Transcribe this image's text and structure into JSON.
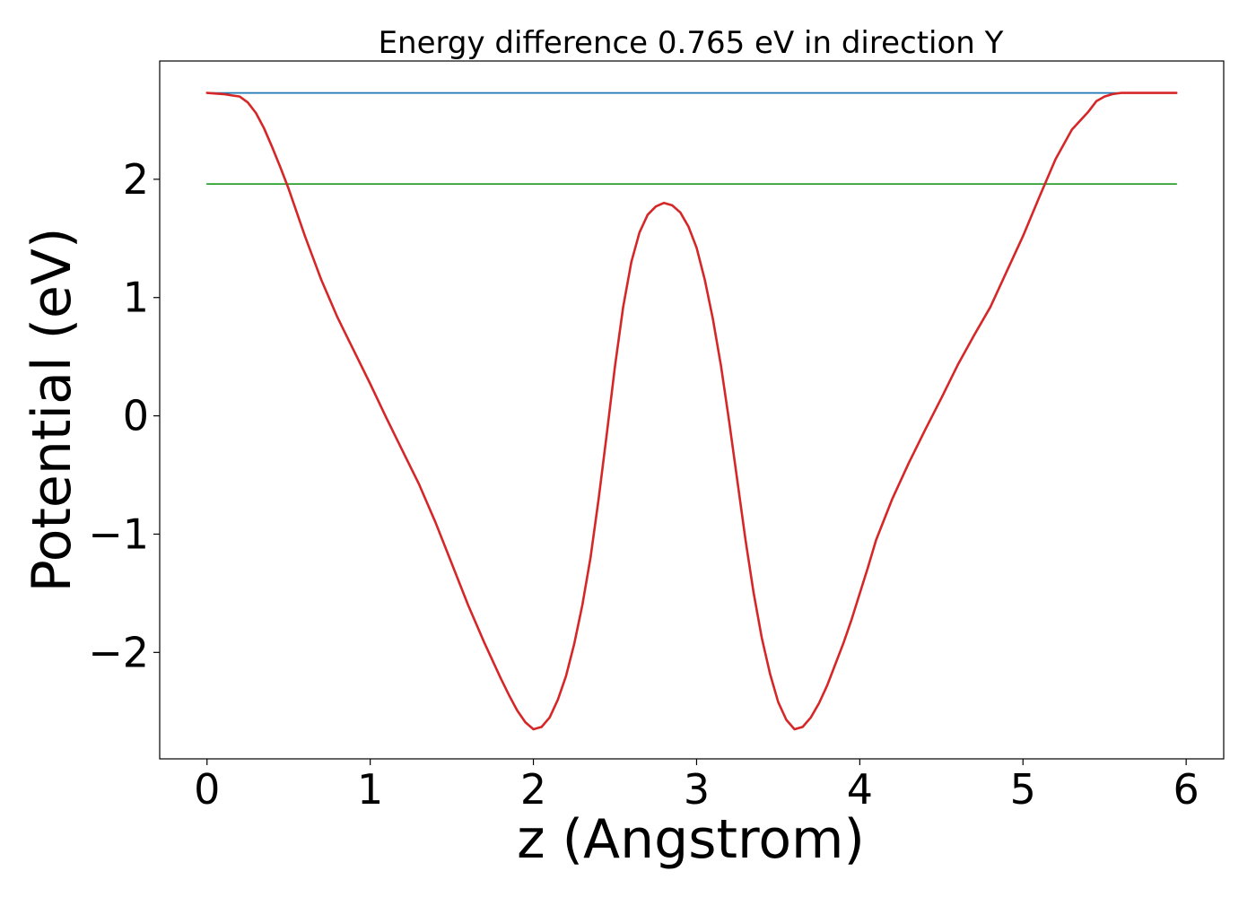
{
  "chart_data": {
    "type": "line",
    "title": "Energy difference 0.765 eV in direction Y",
    "xlabel": "z (Angstrom)",
    "ylabel": "Potential (eV)",
    "xlim": [
      -0.29,
      6.23
    ],
    "ylim": [
      -2.9,
      3.0
    ],
    "grid": false,
    "legend": "none",
    "xticks": [
      {
        "value": 0,
        "label": "0"
      },
      {
        "value": 1,
        "label": "1"
      },
      {
        "value": 2,
        "label": "2"
      },
      {
        "value": 3,
        "label": "3"
      },
      {
        "value": 4,
        "label": "4"
      },
      {
        "value": 5,
        "label": "5"
      },
      {
        "value": 6,
        "label": "6"
      }
    ],
    "yticks": [
      {
        "value": -2,
        "label": "−2"
      },
      {
        "value": -1,
        "label": "−1"
      },
      {
        "value": 0,
        "label": "0"
      },
      {
        "value": 1,
        "label": "1"
      },
      {
        "value": 2,
        "label": "2"
      }
    ],
    "series": [
      {
        "color": "#1f77b4",
        "x": [
          0,
          5.94
        ],
        "y": [
          2.73,
          2.73
        ]
      },
      {
        "color": "#2ca02c",
        "x": [
          0,
          5.94
        ],
        "y": [
          1.96,
          1.96
        ]
      },
      {
        "color": "#d62728",
        "x": [
          0,
          0.1,
          0.2,
          0.25,
          0.3,
          0.35,
          0.4,
          0.45,
          0.5,
          0.6,
          0.7,
          0.8,
          0.9,
          1.0,
          1.1,
          1.2,
          1.3,
          1.4,
          1.5,
          1.6,
          1.7,
          1.8,
          1.85,
          1.9,
          1.95,
          2.0,
          2.05,
          2.1,
          2.15,
          2.2,
          2.25,
          2.3,
          2.35,
          2.4,
          2.45,
          2.5,
          2.55,
          2.6,
          2.65,
          2.7,
          2.75,
          2.8,
          2.85,
          2.9,
          2.95,
          3.0,
          3.05,
          3.1,
          3.15,
          3.2,
          3.25,
          3.3,
          3.35,
          3.4,
          3.45,
          3.5,
          3.55,
          3.6,
          3.65,
          3.7,
          3.75,
          3.8,
          3.85,
          3.9,
          3.95,
          4.0,
          4.05,
          4.1,
          4.2,
          4.3,
          4.4,
          4.5,
          4.6,
          4.7,
          4.8,
          4.9,
          5.0,
          5.1,
          5.2,
          5.3,
          5.4,
          5.45,
          5.5,
          5.55,
          5.6,
          5.65,
          5.7,
          5.75,
          5.8,
          5.94
        ],
        "y": [
          2.73,
          2.72,
          2.7,
          2.65,
          2.56,
          2.43,
          2.27,
          2.1,
          1.92,
          1.52,
          1.15,
          0.83,
          0.55,
          0.27,
          -0.02,
          -0.3,
          -0.58,
          -0.9,
          -1.25,
          -1.6,
          -1.92,
          -2.22,
          -2.36,
          -2.49,
          -2.59,
          -2.65,
          -2.63,
          -2.55,
          -2.4,
          -2.2,
          -1.93,
          -1.6,
          -1.2,
          -0.7,
          -0.15,
          0.42,
          0.92,
          1.3,
          1.55,
          1.7,
          1.77,
          1.8,
          1.78,
          1.72,
          1.6,
          1.42,
          1.15,
          0.82,
          0.42,
          -0.05,
          -0.55,
          -1.05,
          -1.5,
          -1.88,
          -2.18,
          -2.42,
          -2.57,
          -2.65,
          -2.63,
          -2.55,
          -2.43,
          -2.28,
          -2.1,
          -1.92,
          -1.72,
          -1.5,
          -1.28,
          -1.05,
          -0.7,
          -0.4,
          -0.12,
          0.15,
          0.43,
          0.68,
          0.92,
          1.22,
          1.52,
          1.85,
          2.17,
          2.42,
          2.57,
          2.66,
          2.7,
          2.72,
          2.73,
          2.73,
          2.73,
          2.73,
          2.73,
          2.73
        ]
      }
    ]
  }
}
